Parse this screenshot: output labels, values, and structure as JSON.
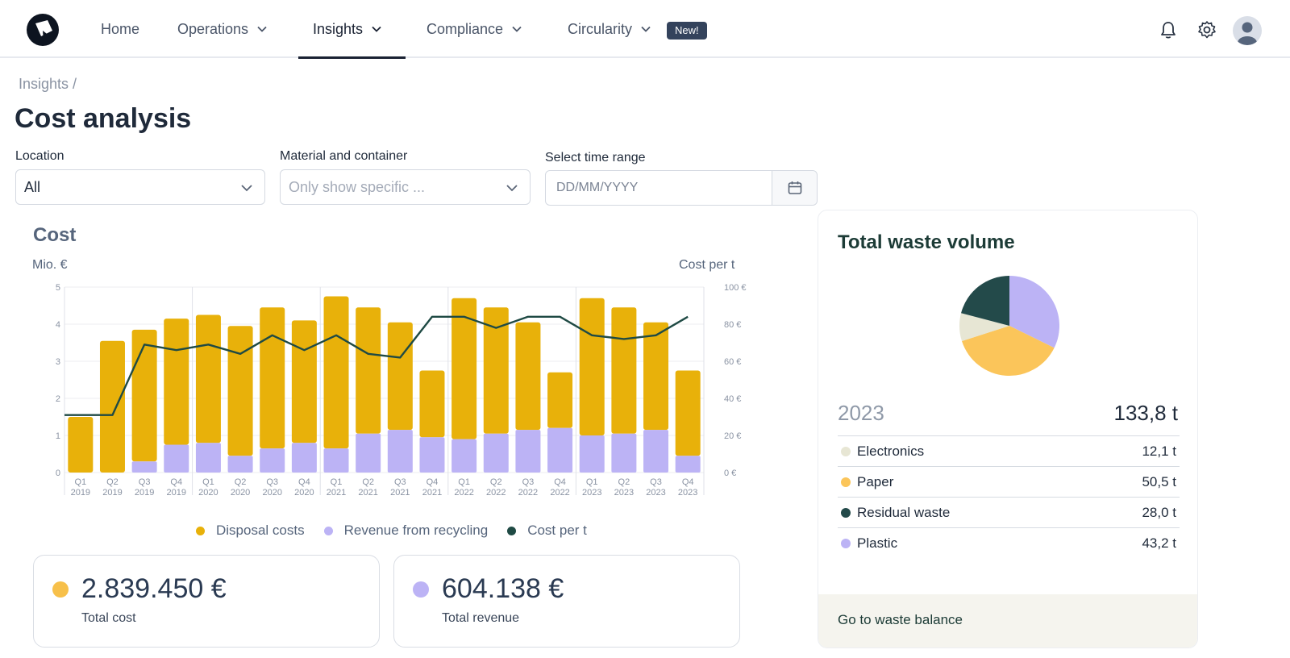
{
  "nav": {
    "logo_icon": "brand-logo-icon",
    "items": [
      {
        "label": "Home",
        "has_dropdown": false
      },
      {
        "label": "Operations",
        "has_dropdown": true
      },
      {
        "label": "Insights",
        "has_dropdown": true,
        "active": true
      },
      {
        "label": "Compliance",
        "has_dropdown": true
      },
      {
        "label": "Circularity",
        "has_dropdown": true
      }
    ],
    "new_badge": "New!",
    "icons": [
      "bell-icon",
      "gear-icon",
      "avatar-icon"
    ]
  },
  "breadcrumb": "Insights /",
  "page_title": "Cost analysis",
  "filters": {
    "location": {
      "label": "Location",
      "value": "All"
    },
    "material": {
      "label": "Material and container",
      "placeholder": "Only show specific ..."
    },
    "time": {
      "label": "Select time range",
      "placeholder": "DD/MM/YYYY",
      "icon": "calendar-icon"
    }
  },
  "cost_panel": {
    "title": "Cost",
    "left_axis_title": "Mio. €",
    "right_axis_title": "Cost per t"
  },
  "chart_data": {
    "type": "bar",
    "categories": [
      "Q1 2019",
      "Q2 2019",
      "Q3 2019",
      "Q4 2019",
      "Q1 2020",
      "Q2 2020",
      "Q3 2020",
      "Q4 2020",
      "Q1 2021",
      "Q2 2021",
      "Q3 2021",
      "Q4 2021",
      "Q1 2022",
      "Q2 2022",
      "Q3 2022",
      "Q4 2022",
      "Q1 2023",
      "Q2 2023",
      "Q3 2023",
      "Q4 2023"
    ],
    "category_lines": [
      [
        "Q1",
        "2019"
      ],
      [
        "Q2",
        "2019"
      ],
      [
        "Q3",
        "2019"
      ],
      [
        "Q4",
        "2019"
      ],
      [
        "Q1",
        "2020"
      ],
      [
        "Q2",
        "2020"
      ],
      [
        "Q3",
        "2020"
      ],
      [
        "Q4",
        "2020"
      ],
      [
        "Q1",
        "2021"
      ],
      [
        "Q2",
        "2021"
      ],
      [
        "Q3",
        "2021"
      ],
      [
        "Q4",
        "2021"
      ],
      [
        "Q1",
        "2022"
      ],
      [
        "Q2",
        "2022"
      ],
      [
        "Q3",
        "2022"
      ],
      [
        "Q4",
        "2022"
      ],
      [
        "Q1",
        "2023"
      ],
      [
        "Q2",
        "2023"
      ],
      [
        "Q3",
        "2023"
      ],
      [
        "Q4",
        "2023"
      ]
    ],
    "series": [
      {
        "name": "Disposal costs",
        "axis": "left",
        "color": "#E8B10A",
        "values": [
          1.5,
          3.55,
          3.55,
          3.4,
          3.45,
          3.5,
          3.8,
          3.3,
          4.1,
          3.4,
          2.9,
          1.8,
          3.8,
          3.4,
          2.9,
          1.5,
          3.7,
          3.4,
          2.9,
          2.3
        ]
      },
      {
        "name": "Revenue from recycling",
        "axis": "left",
        "color": "#BCB3F5",
        "values": [
          0,
          0,
          0.3,
          0.75,
          0.8,
          0.45,
          0.65,
          0.8,
          0.65,
          1.05,
          1.15,
          0.95,
          0.9,
          1.05,
          1.15,
          1.2,
          1.0,
          1.05,
          1.15,
          0.45
        ]
      },
      {
        "name": "Cost per t",
        "axis": "right",
        "type": "line",
        "color": "#1F4A44",
        "values": [
          31,
          31,
          69,
          66,
          69,
          64,
          74,
          66,
          74,
          64,
          62,
          84,
          84,
          78,
          84,
          84,
          74,
          72,
          74,
          84
        ]
      }
    ],
    "left_axis": {
      "title": "Mio. €",
      "ylim": [
        0,
        5
      ],
      "ticks": [
        "0",
        "1",
        "2",
        "3",
        "4",
        "5"
      ]
    },
    "right_axis": {
      "title": "Cost per t",
      "ylim": [
        0,
        100
      ],
      "ticks": [
        "0 €",
        "20 €",
        "40 €",
        "60 €",
        "80 €",
        "100 €"
      ]
    },
    "grid": true,
    "legend_position": "bottom"
  },
  "kpis": [
    {
      "value": "2.839.450 €",
      "label": "Total cost",
      "color": "#F7C04A"
    },
    {
      "value": "604.138 €",
      "label": "Total revenue",
      "color": "#BCB3F5"
    }
  ],
  "waste": {
    "title": "Total waste volume",
    "year": "2023",
    "total": "133,8 t",
    "items": [
      {
        "name": "Electronics",
        "value": "12,1 t",
        "amount": 12.1,
        "color": "#E7E6D4"
      },
      {
        "name": "Paper",
        "value": "50,5 t",
        "amount": 50.5,
        "color": "#FBC55A"
      },
      {
        "name": "Residual waste",
        "value": "28,0 t",
        "amount": 28.0,
        "color": "#234A4A"
      },
      {
        "name": "Plastic",
        "value": "43,2 t",
        "amount": 43.2,
        "color": "#BCB3F5"
      }
    ],
    "footer_link": "Go to waste balance"
  }
}
